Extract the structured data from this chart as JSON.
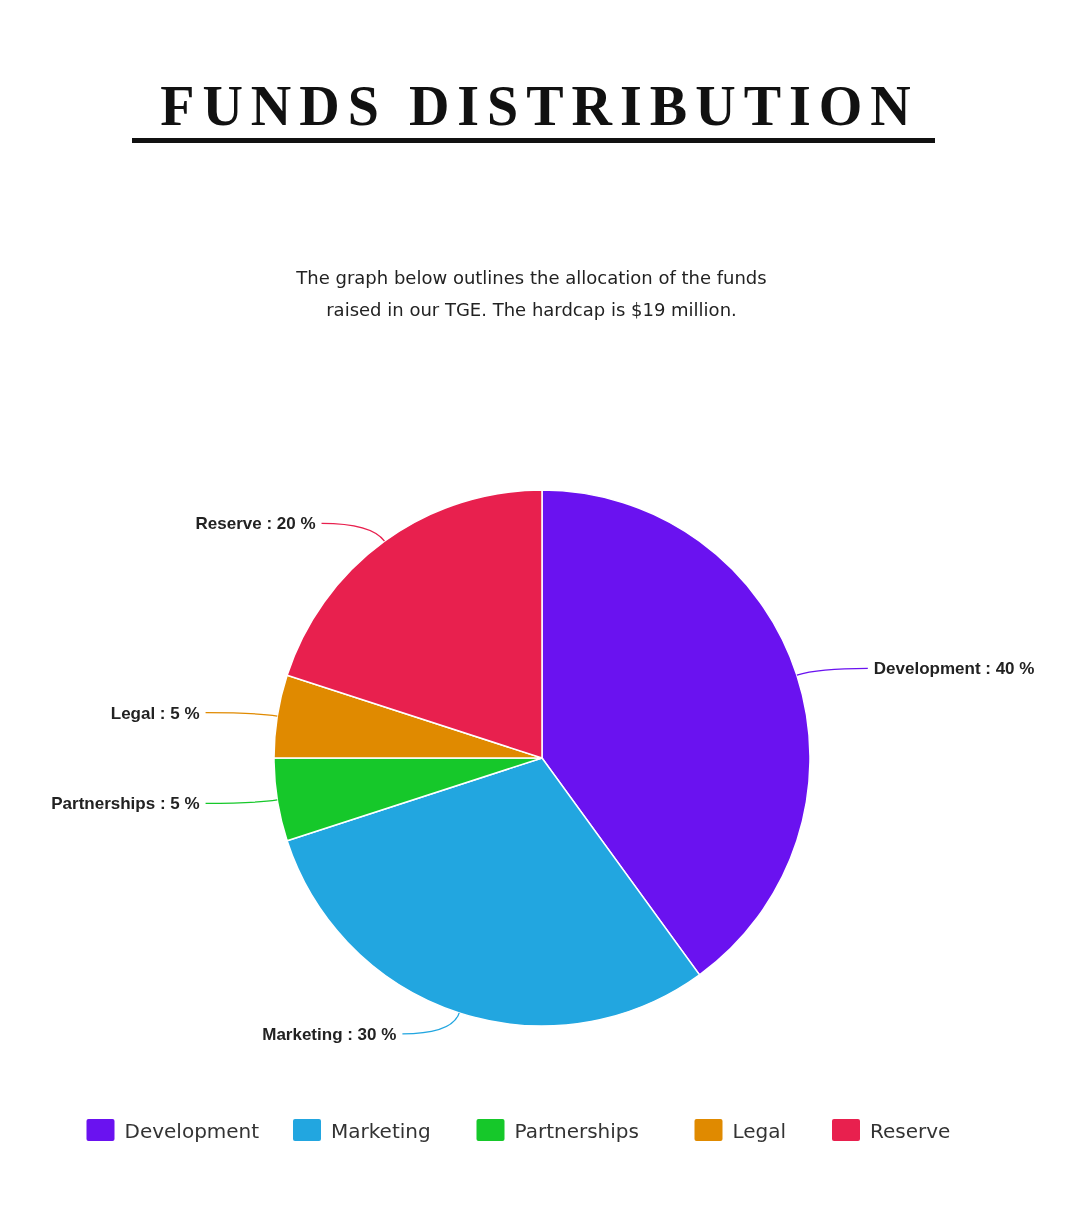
{
  "chart_data": {
    "type": "pie",
    "title": "FUNDS DISTRIBUTION",
    "subtitle": "The graph below outlines the allocation of the funds raised in our TGE. The hardcap is $19 million.",
    "categories": [
      "Development",
      "Marketing",
      "Partnerships",
      "Legal",
      "Reserve"
    ],
    "values": [
      40,
      30,
      5,
      5,
      20
    ],
    "value_labels": [
      "Development : 40 %",
      "Marketing : 30 %",
      "Partnerships : 5 %",
      "Legal : 5 %",
      "Reserve : 20 %"
    ],
    "colors": [
      "#6a12f0",
      "#22a6e0",
      "#16c82a",
      "#e08a00",
      "#e8204e"
    ],
    "legend": "bottom"
  }
}
